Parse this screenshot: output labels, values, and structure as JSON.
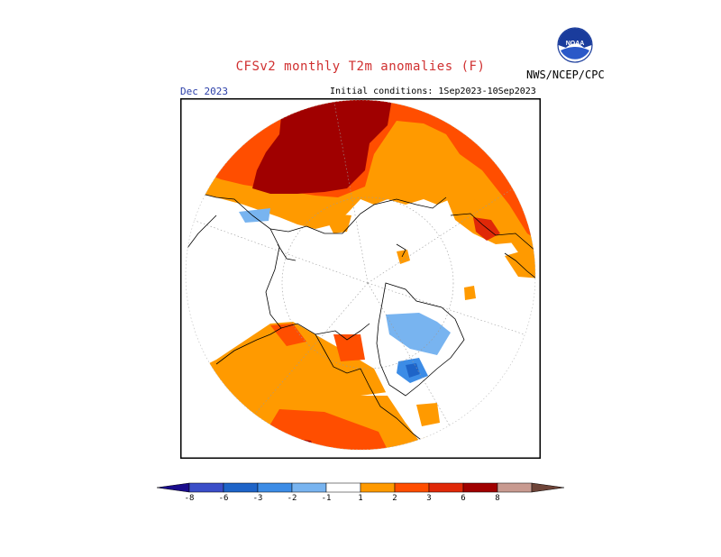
{
  "header": {
    "title": "CFSv2 monthly T2m anomalies (F)",
    "agency": "NWS/NCEP/CPC",
    "logo_text": "NOAA"
  },
  "map": {
    "valid_month": "Dec 2023",
    "initial_conditions": "Initial conditions: 1Sep2023-10Sep2023",
    "projection": "north polar stereographic",
    "colors": {
      "land_outline": "#000000",
      "graticule": "#9a9a9a",
      "frame": "#000000"
    }
  },
  "legend": {
    "ticks": [
      "-8",
      "-6",
      "-3",
      "-2",
      "-1",
      "1",
      "2",
      "3",
      "6",
      "8"
    ],
    "colors": [
      "#1a0c8c",
      "#3a4ec8",
      "#1e64c8",
      "#3c8ce6",
      "#78b4f0",
      "#ffffff",
      "#ff9a00",
      "#ff4e00",
      "#e02808",
      "#a00000",
      "#c89a90",
      "#6e4438"
    ]
  }
}
